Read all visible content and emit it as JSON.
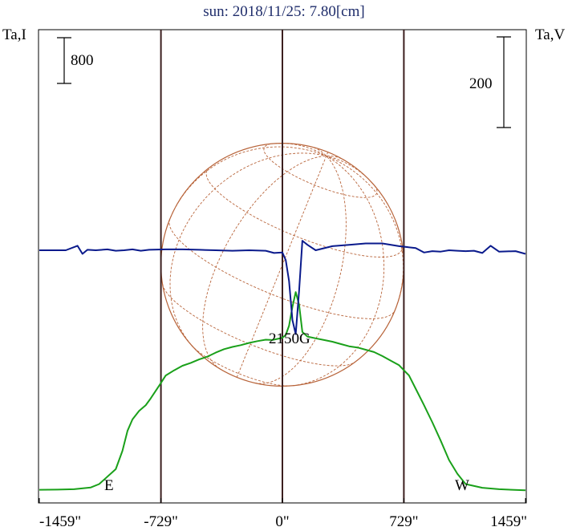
{
  "title": "sun: 2018/11/25: 7.80[cm]",
  "left_axis_label": "Ta,I",
  "right_axis_label": "Ta,V",
  "scale_bar_left_label": "800",
  "scale_bar_right_label": "200",
  "east_label": "E",
  "west_label": "W",
  "source_label": "2150G",
  "colors": {
    "title": "#1f2d6b",
    "intensity": "#1aa01a",
    "polarization": "#0a1a8c",
    "disk": "#b8643a",
    "limb_lines": "#3b1f1f",
    "axes": "#000000"
  },
  "chart_data": {
    "type": "line",
    "title": "sun: 2018/11/25: 7.80[cm]",
    "xlabel": "",
    "x_unit": "arcsec",
    "xlim": [
      -1459,
      1459
    ],
    "x_ticks": [
      -1459,
      -729,
      0,
      729,
      1459
    ],
    "x_tick_labels": [
      "-1459\"",
      "-729\"",
      "0\"",
      "729\"",
      "1459\""
    ],
    "limb_positions": [
      -729,
      0,
      729
    ],
    "limb_labels": [
      "E",
      "W"
    ],
    "scale_bars": [
      {
        "axis": "Ta,I",
        "value": 800
      },
      {
        "axis": "Ta,V",
        "value": 200
      }
    ],
    "series": [
      {
        "axis": "Ta,I",
        "color": "#1aa01a",
        "x": [
          -1459,
          -1350,
          -1250,
          -1150,
          -1100,
          -1000,
          -960,
          -930,
          -900,
          -860,
          -820,
          -790,
          -740,
          -700,
          -650,
          -600,
          -550,
          -500,
          -450,
          -400,
          -350,
          -300,
          -250,
          -200,
          -150,
          -100,
          -60,
          -30,
          0,
          20,
          40,
          60,
          80,
          100,
          120,
          150,
          200,
          250,
          300,
          350,
          400,
          450,
          500,
          550,
          600,
          650,
          700,
          760,
          800,
          850,
          900,
          950,
          1000,
          1050,
          1100,
          1200,
          1300,
          1459
        ],
        "y": [
          20,
          22,
          30,
          60,
          120,
          380,
          700,
          1050,
          1250,
          1400,
          1500,
          1620,
          1840,
          2020,
          2110,
          2190,
          2240,
          2300,
          2350,
          2420,
          2480,
          2520,
          2550,
          2590,
          2620,
          2645,
          2640,
          2660,
          2680,
          2730,
          2890,
          3220,
          3480,
          3260,
          2780,
          2700,
          2670,
          2640,
          2610,
          2570,
          2530,
          2510,
          2470,
          2430,
          2360,
          2280,
          2200,
          2020,
          1790,
          1500,
          1200,
          880,
          540,
          300,
          120,
          55,
          30,
          10
        ]
      },
      {
        "axis": "Ta,V",
        "color": "#0a1a8c",
        "x": [
          -1459,
          -1300,
          -1230,
          -1200,
          -1170,
          -1120,
          -1050,
          -1000,
          -950,
          -900,
          -850,
          -800,
          -700,
          -600,
          -500,
          -400,
          -300,
          -200,
          -100,
          -50,
          0,
          20,
          40,
          60,
          80,
          100,
          120,
          150,
          200,
          300,
          400,
          500,
          600,
          700,
          800,
          850,
          900,
          950,
          1000,
          1050,
          1100,
          1150,
          1200,
          1250,
          1300,
          1400,
          1459
        ],
        "y": [
          0,
          0,
          10,
          -8,
          1,
          0,
          2,
          -1,
          0,
          2,
          -1,
          1,
          2,
          2,
          1,
          0,
          -1,
          0,
          -1,
          -6,
          -5,
          -22,
          -68,
          -154,
          -185,
          -90,
          21,
          12,
          0,
          9,
          12,
          15,
          15,
          9,
          5,
          -5,
          -2,
          -3,
          0,
          -1,
          -2,
          -1,
          -6,
          10,
          -3,
          -2,
          -8
        ]
      }
    ]
  }
}
